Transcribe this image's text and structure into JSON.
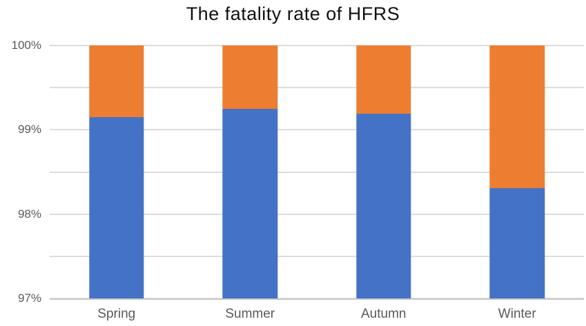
{
  "chart_data": {
    "type": "bar",
    "stacked": true,
    "title": "The fatality rate of HFRS",
    "categories": [
      "Spring",
      "Summer",
      "Autumn",
      "Winter"
    ],
    "series": [
      {
        "name": "blue-lower-segment",
        "color": "#4472C4",
        "values": [
          99.15,
          99.25,
          99.19,
          98.31
        ]
      },
      {
        "name": "orange-upper-segment",
        "color": "#ED7D31",
        "values": [
          0.85,
          0.75,
          0.81,
          1.69
        ]
      }
    ],
    "value_note": "blue values are the stack boundary level in %, orange values are the remaining share up to 100%",
    "ylim": [
      97,
      100
    ],
    "gridline_step": 0.5,
    "y_major_ticks": [
      100,
      99,
      98,
      97
    ],
    "y_tick_labels": [
      "100%",
      "99%",
      "98%",
      "97%"
    ],
    "grid": true,
    "legend": "none",
    "style": {
      "gridline_color": "#dcdcdc",
      "axis_line_color": "#c9c9c9",
      "tick_label_color": "#595959",
      "title_color": "#111111",
      "background": "#ffffff"
    }
  }
}
